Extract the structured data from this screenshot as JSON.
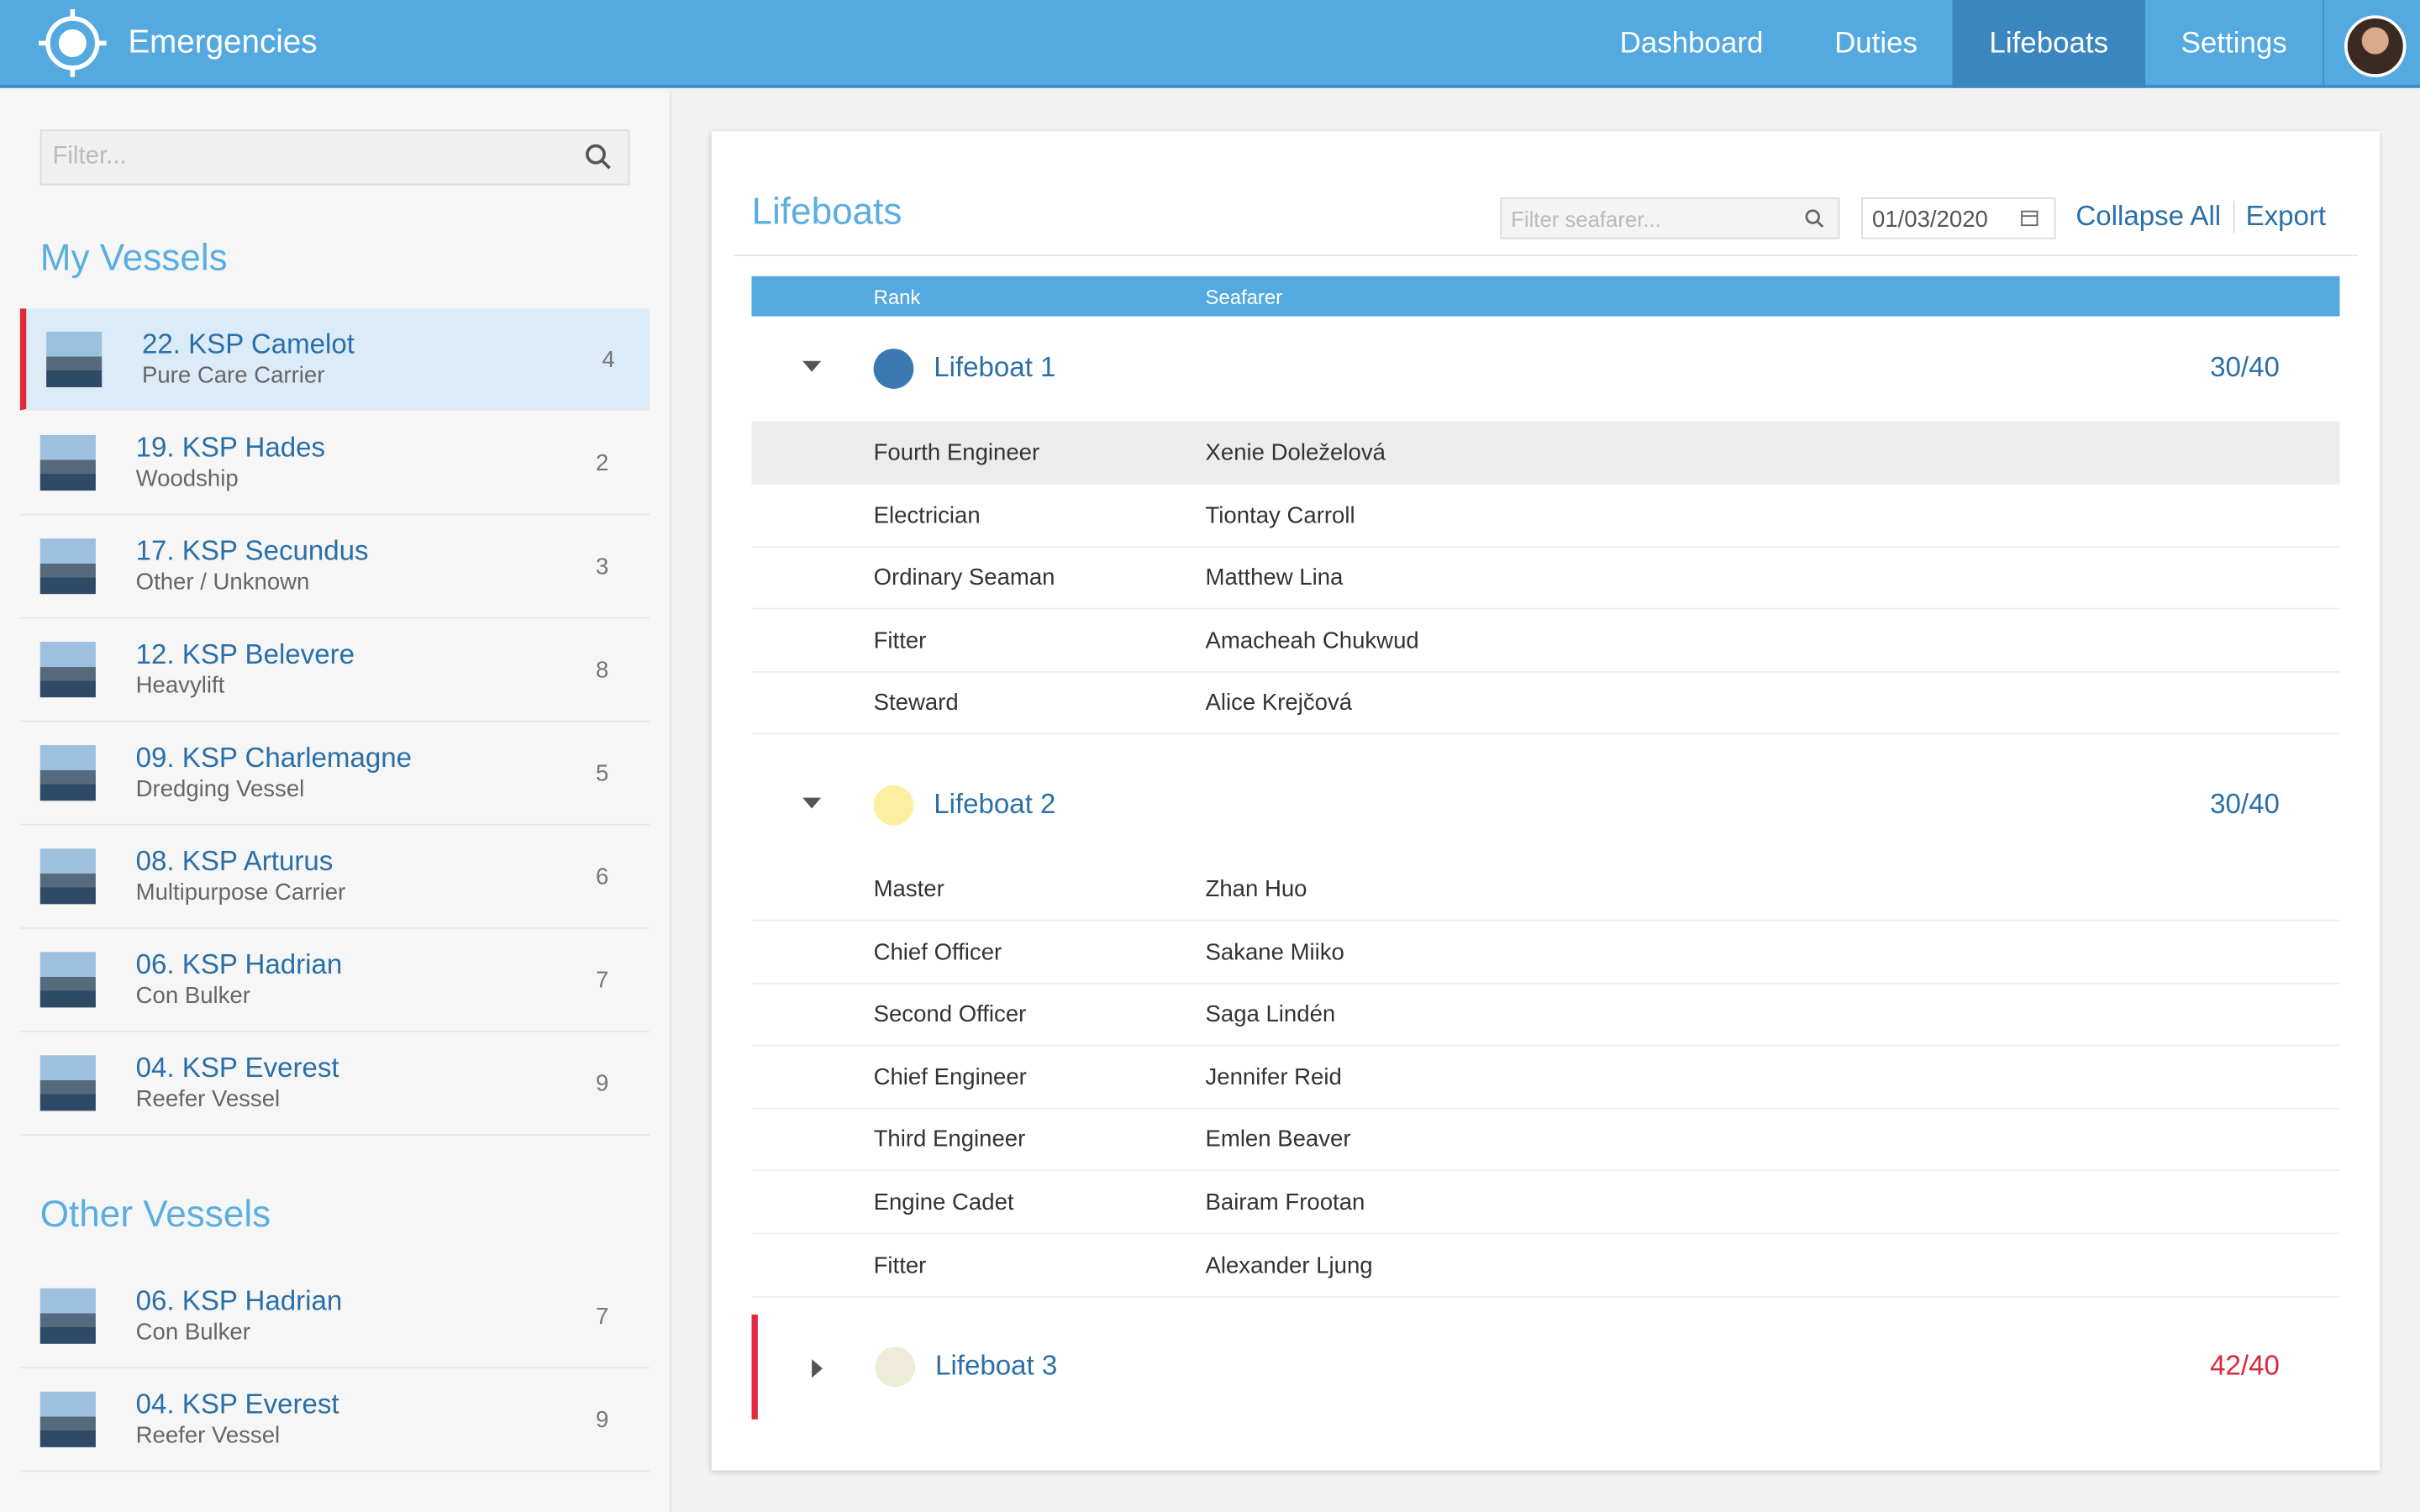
{
  "header": {
    "app_title": "Emergencies",
    "nav": [
      "Dashboard",
      "Duties",
      "Lifeboats",
      "Settings"
    ],
    "active_nav": 2
  },
  "sidebar": {
    "filter_placeholder": "Filter...",
    "sections": [
      {
        "title": "My Vessels",
        "vessels": [
          {
            "name": "22. KSP Camelot",
            "type": "Pure Care Carrier",
            "count": "4",
            "selected": true
          },
          {
            "name": "19. KSP Hades",
            "type": "Woodship",
            "count": "2"
          },
          {
            "name": "17. KSP Secundus",
            "type": "Other / Unknown",
            "count": "3"
          },
          {
            "name": "12. KSP Belevere",
            "type": "Heavylift",
            "count": "8"
          },
          {
            "name": "09. KSP Charlemagne",
            "type": "Dredging Vessel",
            "count": "5"
          },
          {
            "name": "08. KSP Arturus",
            "type": "Multipurpose Carrier",
            "count": "6"
          },
          {
            "name": "06. KSP Hadrian",
            "type": "Con Bulker",
            "count": "7"
          },
          {
            "name": "04. KSP Everest",
            "type": "Reefer Vessel",
            "count": "9"
          }
        ]
      },
      {
        "title": "Other Vessels",
        "vessels": [
          {
            "name": "06. KSP Hadrian",
            "type": "Con Bulker",
            "count": "7"
          },
          {
            "name": "04. KSP Everest",
            "type": "Reefer Vessel",
            "count": "9"
          }
        ]
      }
    ]
  },
  "main": {
    "title": "Lifeboats",
    "filter_placeholder": "Filter seafarer...",
    "date": "01/03/2020",
    "actions": [
      "Collapse All",
      "Export"
    ],
    "columns": [
      "Rank",
      "Seafarer"
    ],
    "lifeboats": [
      {
        "name": "Lifeboat 1",
        "color": "#3b78b4",
        "count": "30/40",
        "count_color": "#2a6fa8",
        "expanded": true,
        "members": [
          [
            "Fourth Engineer",
            "Xenie Doleželová"
          ],
          [
            "Electrician",
            "Tiontay Carroll"
          ],
          [
            "Ordinary Seaman",
            "Matthew Lina"
          ],
          [
            "Fitter",
            "Amacheah Chukwud"
          ],
          [
            "Steward",
            "Alice Krejčová"
          ]
        ]
      },
      {
        "name": "Lifeboat 2",
        "color": "#fcf0a0",
        "count": "30/40",
        "count_color": "#2a6fa8",
        "expanded": true,
        "members": [
          [
            "Master",
            "Zhan Huo"
          ],
          [
            "Chief Officer",
            "Sakane Miiko"
          ],
          [
            "Second Officer",
            "Saga Lindén"
          ],
          [
            "Chief Engineer",
            "Jennifer Reid"
          ],
          [
            "Third Engineer",
            "Emlen Beaver"
          ],
          [
            "Engine Cadet",
            "Bairam Frootan"
          ],
          [
            "Fitter",
            "Alexander Ljung"
          ]
        ]
      },
      {
        "name": "Lifeboat 3",
        "color": "#eeecd8",
        "count": "42/40",
        "count_color": "#d8283c",
        "expanded": false,
        "flagged": true,
        "members": []
      }
    ]
  }
}
